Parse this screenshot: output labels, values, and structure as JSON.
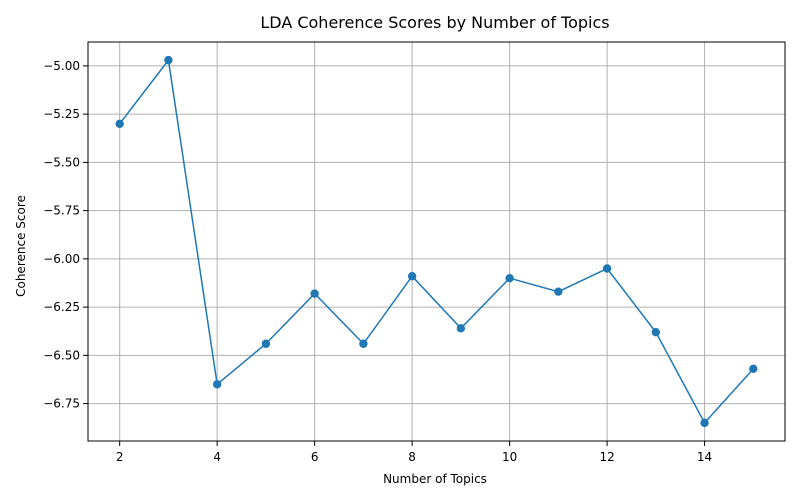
{
  "chart_data": {
    "type": "line",
    "title": "LDA Coherence Scores by Number of Topics",
    "xlabel": "Number of Topics",
    "ylabel": "Coherence Score",
    "x": [
      2,
      3,
      4,
      5,
      6,
      7,
      8,
      9,
      10,
      11,
      12,
      13,
      14,
      15
    ],
    "series": [
      {
        "values": [
          -5.3,
          -4.97,
          -6.65,
          -6.44,
          -6.18,
          -6.44,
          -6.09,
          -6.36,
          -6.1,
          -6.17,
          -6.05,
          -6.38,
          -6.85,
          -6.57
        ]
      }
    ],
    "xlim": [
      1.35,
      15.65
    ],
    "ylim": [
      -6.944,
      -4.876
    ],
    "x_ticks": [
      2,
      4,
      6,
      8,
      10,
      12,
      14
    ],
    "x_tick_labels": [
      "2",
      "4",
      "6",
      "8",
      "10",
      "12",
      "14"
    ],
    "y_ticks": [
      -5.0,
      -5.25,
      -5.5,
      -5.75,
      -6.0,
      -6.25,
      -6.5,
      -6.75
    ],
    "y_tick_labels": [
      "−5.00",
      "−5.25",
      "−5.50",
      "−5.75",
      "−6.00",
      "−6.25",
      "−6.50",
      "−6.75"
    ],
    "grid": true,
    "legend": "none",
    "line_color": "#1f77b4",
    "marker": "circle"
  }
}
